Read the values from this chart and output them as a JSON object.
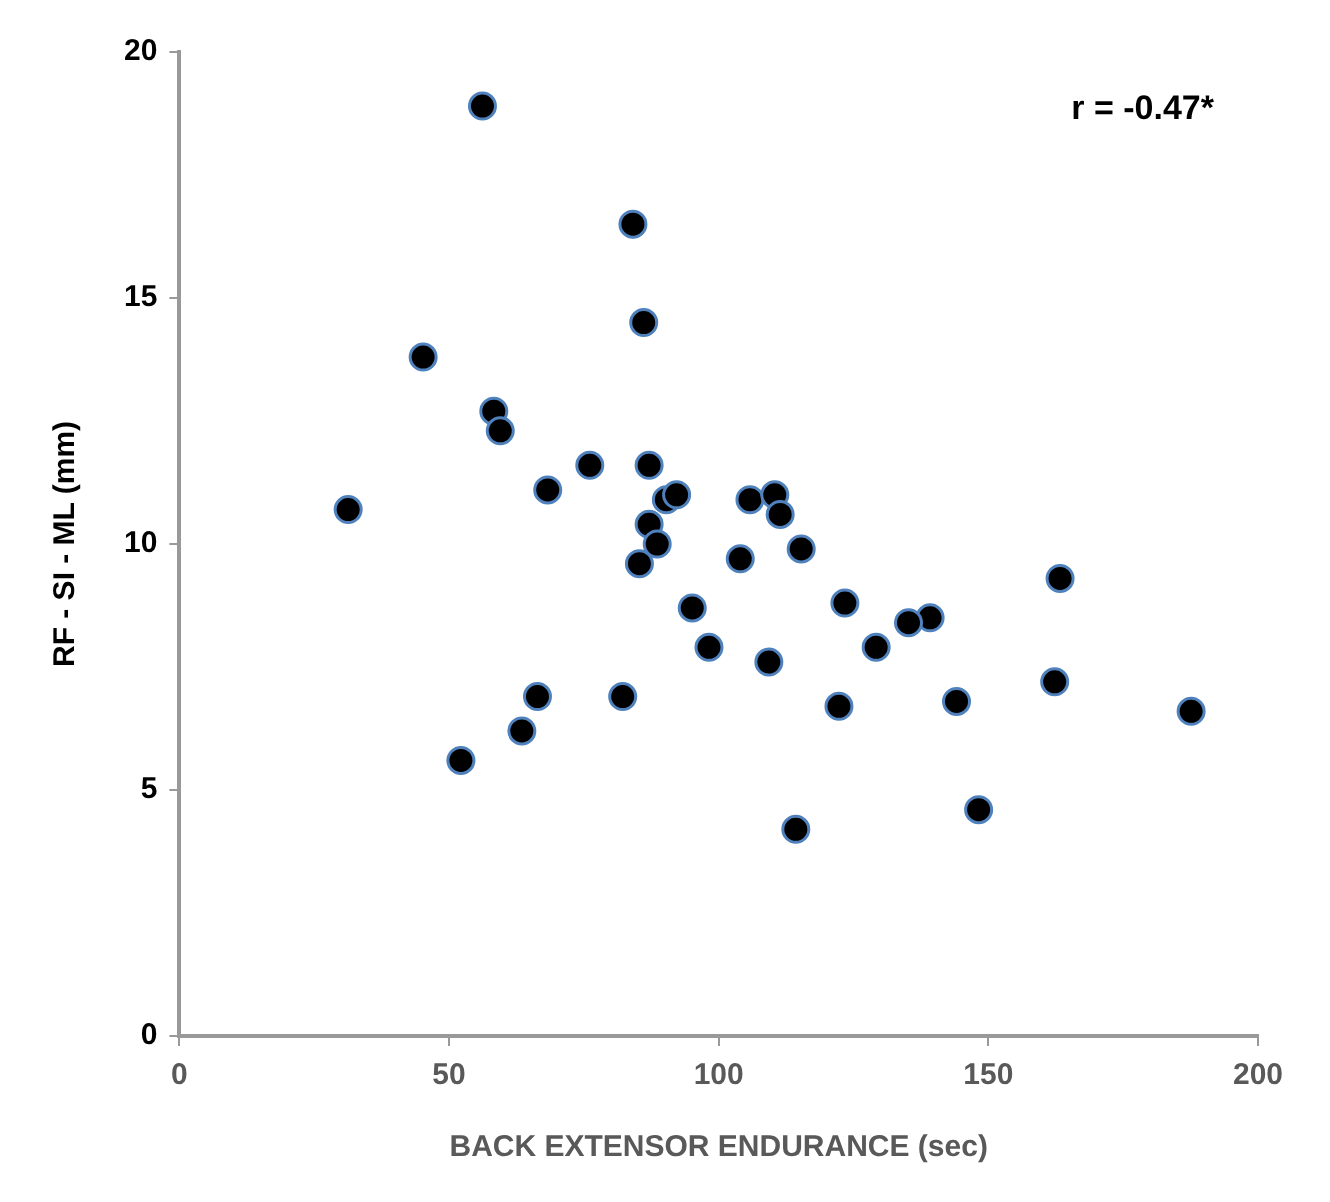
{
  "chart_data": {
    "type": "scatter",
    "xlabel": "BACK EXTENSOR ENDURANCE (sec)",
    "ylabel": "RF - SI - ML (mm)",
    "annotations": [
      "r = -0.47*"
    ],
    "xlim": [
      0,
      200
    ],
    "xticks": [
      0,
      50,
      100,
      150,
      200
    ],
    "ylim": [
      0,
      20
    ],
    "yticks": [
      0,
      5,
      10,
      15,
      20
    ],
    "grid": false,
    "legend": false,
    "marker": "circle",
    "series": [
      {
        "color": "#000000",
        "x": [
          56.2,
          84.1,
          86.1,
          45.2,
          58.3,
          59.5,
          31.3,
          68.3,
          76.1,
          87.1,
          90.3,
          92.2,
          87.1,
          88.6,
          85.3,
          105.8,
          110.4,
          111.4,
          104.0,
          115.3,
          163.3,
          123.4,
          95.1,
          139.2,
          135.2,
          98.2,
          129.2,
          109.3,
          82.2,
          122.3,
          144.1,
          162.3,
          187.6,
          114.3,
          148.2,
          66.4,
          63.5,
          52.2
        ],
        "values": [
          18.9,
          16.5,
          14.5,
          13.8,
          12.7,
          12.3,
          10.7,
          11.1,
          11.6,
          11.6,
          10.9,
          11.0,
          10.4,
          10.0,
          9.6,
          10.9,
          11.0,
          10.6,
          9.7,
          9.9,
          9.3,
          8.8,
          8.7,
          8.5,
          8.4,
          7.9,
          7.9,
          7.6,
          6.9,
          6.7,
          6.8,
          7.2,
          6.6,
          4.2,
          4.6,
          6.9,
          6.2,
          5.6
        ]
      }
    ]
  }
}
